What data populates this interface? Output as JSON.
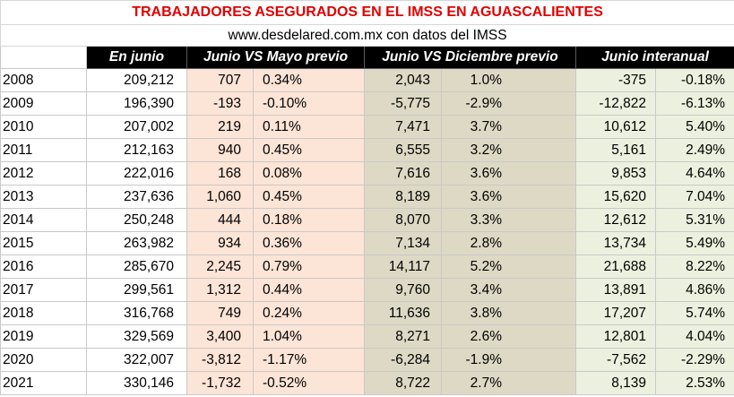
{
  "title": "TRABAJADORES ASEGURADOS EN EL IMSS EN AGUASCALIENTES",
  "subtitle": "www.desdelared.com.mx con datos del IMSS",
  "headers": {
    "en_junio": "En junio",
    "junio_vs_mayo": "Junio VS Mayo previo",
    "junio_vs_diciembre": "Junio VS Diciembre previo",
    "junio_interanual": "Junio interanual"
  },
  "rows": [
    {
      "year": "2008",
      "total": "209,212",
      "vs_mayo": "707",
      "vs_mayo_pct": "0.34%",
      "vs_dic": "2,043",
      "vs_dic_pct": "1.0%",
      "interanual": "-375",
      "interanual_pct": "-0.18%"
    },
    {
      "year": "2009",
      "total": "196,390",
      "vs_mayo": "-193",
      "vs_mayo_pct": "-0.10%",
      "vs_dic": "-5,775",
      "vs_dic_pct": "-2.9%",
      "interanual": "-12,822",
      "interanual_pct": "-6.13%"
    },
    {
      "year": "2010",
      "total": "207,002",
      "vs_mayo": "219",
      "vs_mayo_pct": "0.11%",
      "vs_dic": "7,471",
      "vs_dic_pct": "3.7%",
      "interanual": "10,612",
      "interanual_pct": "5.40%"
    },
    {
      "year": "2011",
      "total": "212,163",
      "vs_mayo": "940",
      "vs_mayo_pct": "0.45%",
      "vs_dic": "6,555",
      "vs_dic_pct": "3.2%",
      "interanual": "5,161",
      "interanual_pct": "2.49%"
    },
    {
      "year": "2012",
      "total": "222,016",
      "vs_mayo": "168",
      "vs_mayo_pct": "0.08%",
      "vs_dic": "7,616",
      "vs_dic_pct": "3.6%",
      "interanual": "9,853",
      "interanual_pct": "4.64%"
    },
    {
      "year": "2013",
      "total": "237,636",
      "vs_mayo": "1,060",
      "vs_mayo_pct": "0.45%",
      "vs_dic": "8,189",
      "vs_dic_pct": "3.6%",
      "interanual": "15,620",
      "interanual_pct": "7.04%"
    },
    {
      "year": "2014",
      "total": "250,248",
      "vs_mayo": "444",
      "vs_mayo_pct": "0.18%",
      "vs_dic": "8,070",
      "vs_dic_pct": "3.3%",
      "interanual": "12,612",
      "interanual_pct": "5.31%"
    },
    {
      "year": "2015",
      "total": "263,982",
      "vs_mayo": "934",
      "vs_mayo_pct": "0.36%",
      "vs_dic": "7,134",
      "vs_dic_pct": "2.8%",
      "interanual": "13,734",
      "interanual_pct": "5.49%"
    },
    {
      "year": "2016",
      "total": "285,670",
      "vs_mayo": "2,245",
      "vs_mayo_pct": "0.79%",
      "vs_dic": "14,117",
      "vs_dic_pct": "5.2%",
      "interanual": "21,688",
      "interanual_pct": "8.22%"
    },
    {
      "year": "2017",
      "total": "299,561",
      "vs_mayo": "1,312",
      "vs_mayo_pct": "0.44%",
      "vs_dic": "9,760",
      "vs_dic_pct": "3.4%",
      "interanual": "13,891",
      "interanual_pct": "4.86%"
    },
    {
      "year": "2018",
      "total": "316,768",
      "vs_mayo": "749",
      "vs_mayo_pct": "0.24%",
      "vs_dic": "11,636",
      "vs_dic_pct": "3.8%",
      "interanual": "17,207",
      "interanual_pct": "5.74%"
    },
    {
      "year": "2019",
      "total": "329,569",
      "vs_mayo": "3,400",
      "vs_mayo_pct": "1.04%",
      "vs_dic": "8,271",
      "vs_dic_pct": "2.6%",
      "interanual": "12,801",
      "interanual_pct": "4.04%"
    },
    {
      "year": "2020",
      "total": "322,007",
      "vs_mayo": "-3,812",
      "vs_mayo_pct": "-1.17%",
      "vs_dic": "-6,284",
      "vs_dic_pct": "-1.9%",
      "interanual": "-7,562",
      "interanual_pct": "-2.29%"
    },
    {
      "year": "2021",
      "total": "330,146",
      "vs_mayo": "-1,732",
      "vs_mayo_pct": "-0.52%",
      "vs_dic": "8,722",
      "vs_dic_pct": "2.7%",
      "interanual": "8,139",
      "interanual_pct": "2.53%"
    }
  ],
  "colors": {
    "title": "#e00000",
    "header_bg": "#000000",
    "header_text": "#ffffff",
    "mayo_bg": "#fce4d6",
    "diciembre_bg": "#ddd9c4",
    "interanual_bg": "#ebf1de"
  },
  "chart_data": {
    "type": "table",
    "title": "TRABAJADORES ASEGURADOS EN EL IMSS EN AGUASCALIENTES",
    "subtitle": "www.desdelared.com.mx con datos del IMSS",
    "columns": [
      "",
      "En junio",
      "Junio VS Mayo previo",
      "",
      "Junio VS Diciembre previo",
      "",
      "Junio interanual",
      ""
    ],
    "categories": [
      "2008",
      "2009",
      "2010",
      "2011",
      "2012",
      "2013",
      "2014",
      "2015",
      "2016",
      "2017",
      "2018",
      "2019",
      "2020",
      "2021"
    ],
    "series": [
      {
        "name": "En junio",
        "values": [
          209212,
          196390,
          207002,
          212163,
          222016,
          237636,
          250248,
          263982,
          285670,
          299561,
          316768,
          329569,
          322007,
          330146
        ]
      },
      {
        "name": "Junio VS Mayo previo",
        "values": [
          707,
          -193,
          219,
          940,
          168,
          1060,
          444,
          934,
          2245,
          1312,
          749,
          3400,
          -3812,
          -1732
        ]
      },
      {
        "name": "Junio VS Diciembre previo",
        "values": [
          2043,
          -5775,
          7471,
          6555,
          7616,
          8189,
          8070,
          7134,
          14117,
          9760,
          11636,
          8271,
          -6284,
          8722
        ]
      },
      {
        "name": "Junio interanual",
        "values": [
          -375,
          -12822,
          10612,
          5161,
          9853,
          15620,
          12612,
          13734,
          21688,
          13891,
          17207,
          12801,
          -7562,
          8139
        ]
      }
    ]
  }
}
